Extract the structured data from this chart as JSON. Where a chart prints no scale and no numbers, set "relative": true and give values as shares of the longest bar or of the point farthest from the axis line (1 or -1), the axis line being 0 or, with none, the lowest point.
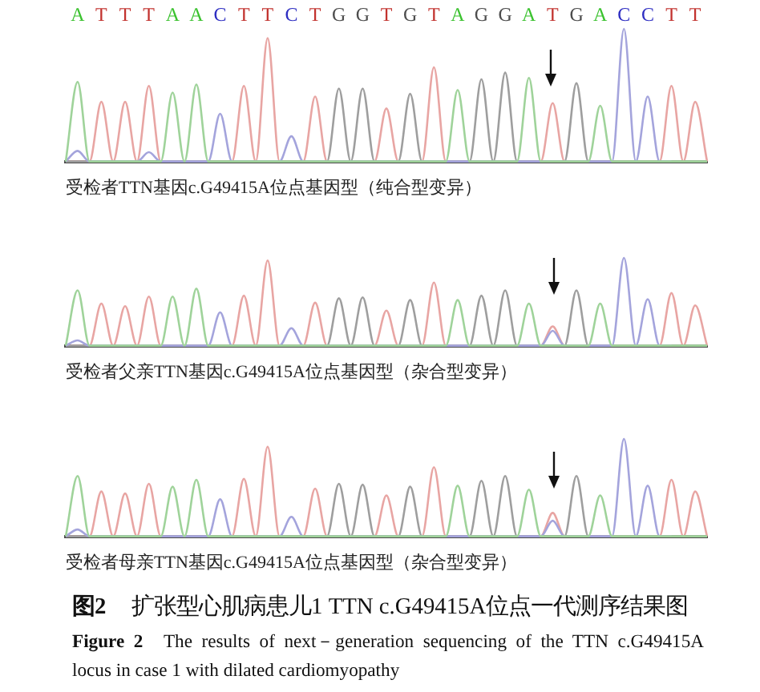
{
  "chart_data": [
    {
      "type": "line",
      "title": "受检者TTN基因c.G49415A位点基因型（纯合型变异）",
      "relative": true,
      "tick_labels": "x",
      "categories": [
        null,
        "A",
        null,
        "T",
        null,
        "T",
        null,
        "T",
        null,
        "A",
        null,
        "A",
        null,
        "C",
        null,
        "T",
        null,
        "T",
        null,
        "C",
        null,
        "T",
        null,
        "G",
        null,
        "G",
        null,
        "T",
        null,
        "G",
        null,
        "T",
        null,
        "A",
        null,
        "G",
        null,
        "G",
        null,
        "A",
        null,
        "T",
        null,
        "G",
        null,
        "A",
        null,
        "C",
        null,
        "C",
        null,
        "T",
        null,
        "T",
        null
      ],
      "series": [
        {
          "color": "#9fd39a",
          "values": [
            0,
            0.6,
            0,
            0,
            0,
            0,
            0,
            0,
            0,
            0.52,
            0,
            0.58,
            0,
            0,
            0,
            0,
            0,
            0,
            0,
            0,
            0,
            0,
            0,
            0,
            0,
            0,
            0,
            0,
            0,
            0,
            0,
            0,
            0,
            0.54,
            0,
            0,
            0,
            0,
            0,
            0.63,
            0,
            0,
            0,
            0,
            0,
            0.42,
            0,
            0,
            0,
            0,
            0,
            0,
            0,
            0,
            0
          ]
        },
        {
          "color": "#a4a4dc",
          "values": [
            0,
            0.08,
            0,
            0,
            0,
            0,
            0,
            0.07,
            0,
            0,
            0,
            0,
            0,
            0.36,
            0,
            0,
            0,
            0,
            0,
            0.19,
            0,
            0,
            0,
            0,
            0,
            0,
            0,
            0,
            0,
            0,
            0,
            0,
            0,
            0,
            0,
            0,
            0,
            0,
            0,
            0,
            0,
            0,
            0,
            0,
            0,
            0,
            0,
            1,
            0,
            0.49,
            0,
            0,
            null,
            null,
            null
          ]
        },
        {
          "color": "#9e9e9e",
          "values": [
            0,
            0,
            0,
            0,
            0,
            0,
            0,
            0,
            0,
            0,
            0,
            0,
            0,
            0,
            0,
            0,
            0,
            0,
            0,
            0,
            0,
            0,
            0,
            0.55,
            0,
            0.55,
            0,
            0,
            0,
            0.51,
            0,
            0,
            0,
            0,
            0,
            0.62,
            0,
            0.67,
            0,
            0,
            0,
            0,
            0,
            0.59,
            0,
            0,
            0,
            0,
            0,
            0,
            0,
            0,
            0,
            0,
            0
          ]
        },
        {
          "color": "#e8a5a3",
          "values": [
            0,
            0,
            0,
            0.45,
            0,
            0.45,
            0,
            0.57,
            0,
            0,
            0,
            0,
            0,
            0,
            0,
            0.57,
            0,
            0.93,
            0,
            0,
            0,
            0.49,
            0,
            0,
            0,
            0,
            0,
            0.4,
            0,
            0,
            0,
            0.71,
            0,
            0,
            0,
            0,
            0,
            0,
            0,
            0,
            0,
            0.44,
            0,
            0,
            0,
            0,
            0,
            0,
            0,
            0,
            0,
            0.57,
            0,
            0.45,
            0
          ]
        }
      ]
    },
    {
      "type": "line",
      "title": "受检者父亲TTN基因c.G49415A位点基因型（杂合型变异）",
      "relative": true,
      "categories": [
        null,
        null,
        null,
        null,
        null,
        null,
        null,
        null,
        null,
        null,
        null,
        null,
        null,
        null,
        null,
        null,
        null,
        null,
        null,
        null,
        null,
        null,
        null,
        null,
        null,
        null,
        null,
        null,
        null,
        null,
        null,
        null,
        null,
        null,
        null,
        null,
        null,
        null,
        null,
        null,
        null,
        null,
        null,
        null,
        null,
        null,
        null,
        null,
        null,
        null,
        null,
        null,
        null,
        null,
        null
      ],
      "series": [
        {
          "color": "#9fd39a",
          "values": [
            0,
            0.63,
            0,
            0,
            0,
            0,
            0,
            0,
            0,
            0.56,
            0,
            0.65,
            0,
            0,
            0,
            0,
            0,
            0,
            0,
            0,
            0,
            0,
            0,
            0,
            0,
            0,
            0,
            0,
            0,
            0,
            0,
            0,
            0,
            0.52,
            0,
            0,
            0,
            0,
            0,
            0.48,
            0,
            0,
            0,
            0,
            0,
            0.48,
            0,
            0,
            0,
            0,
            0,
            0,
            0,
            0,
            0
          ]
        },
        {
          "color": "#a4a4dc",
          "values": [
            0,
            0.06,
            0,
            0,
            0,
            0,
            0,
            0,
            0,
            0,
            0,
            0,
            0,
            0.38,
            0,
            0,
            0,
            0,
            0,
            0.2,
            0,
            0,
            0,
            0,
            0,
            0,
            0,
            0,
            0,
            0,
            0,
            0,
            0,
            0,
            0,
            0,
            0,
            0,
            0,
            0,
            0,
            0.17,
            0,
            0,
            0,
            0,
            0,
            1,
            0,
            0.53,
            0,
            0,
            null,
            null,
            null
          ]
        },
        {
          "color": "#9e9e9e",
          "values": [
            0,
            0,
            0,
            0,
            0,
            0,
            0,
            0,
            0,
            0,
            0,
            0,
            0,
            0,
            0,
            0,
            0,
            0,
            0,
            0,
            0,
            0,
            0,
            0.54,
            0,
            0.55,
            0,
            0,
            0,
            0.52,
            0,
            0,
            0,
            0,
            0,
            0.57,
            0,
            0.63,
            0,
            0,
            0,
            0,
            0,
            0.63,
            0,
            0,
            0,
            0,
            0,
            0,
            0,
            0,
            0,
            0,
            0
          ]
        },
        {
          "color": "#e8a5a3",
          "values": [
            0,
            0,
            0,
            0.48,
            0,
            0.45,
            0,
            0.56,
            0,
            0,
            0,
            0,
            0,
            0,
            0,
            0.57,
            0,
            0.97,
            0,
            0,
            0,
            0.49,
            0,
            0,
            0,
            0,
            0,
            0.4,
            0,
            0,
            0,
            0.72,
            0,
            0,
            0,
            0,
            0,
            0,
            0,
            0,
            0,
            0.22,
            0,
            0,
            0,
            0,
            0,
            0,
            0,
            0,
            0,
            0.6,
            0,
            0.46,
            0
          ]
        }
      ]
    },
    {
      "type": "line",
      "title": "受检者母亲TTN基因c.G49415A位点基因型（杂合型变异）",
      "relative": true,
      "categories": [
        null,
        null,
        null,
        null,
        null,
        null,
        null,
        null,
        null,
        null,
        null,
        null,
        null,
        null,
        null,
        null,
        null,
        null,
        null,
        null,
        null,
        null,
        null,
        null,
        null,
        null,
        null,
        null,
        null,
        null,
        null,
        null,
        null,
        null,
        null,
        null,
        null,
        null,
        null,
        null,
        null,
        null,
        null,
        null,
        null,
        null,
        null,
        null,
        null,
        null,
        null,
        null,
        null,
        null,
        null
      ],
      "series": [
        {
          "color": "#9fd39a",
          "values": [
            0,
            0.62,
            0,
            0,
            0,
            0,
            0,
            0,
            0,
            0.51,
            0,
            0.58,
            0,
            0,
            0,
            0,
            0,
            0,
            0,
            0,
            0,
            0,
            0,
            0,
            0,
            0,
            0,
            0,
            0,
            0,
            0,
            0,
            0,
            0.52,
            0,
            0,
            0,
            0,
            0,
            0.48,
            0,
            0,
            0,
            0,
            0,
            0.42,
            0,
            0,
            0,
            0,
            0,
            0,
            0,
            0,
            0
          ]
        },
        {
          "color": "#a4a4dc",
          "values": [
            0,
            0.07,
            0,
            0,
            0,
            0,
            0,
            0,
            0,
            0,
            0,
            0,
            0,
            0.38,
            0,
            0,
            0,
            0,
            0,
            0.2,
            0,
            0,
            0,
            0,
            0,
            0,
            0,
            0,
            0,
            0,
            0,
            0,
            0,
            0,
            0,
            0,
            0,
            0,
            0,
            0,
            0,
            0.16,
            0,
            0,
            0,
            0,
            0,
            1,
            0,
            0.52,
            0,
            0,
            null,
            null,
            null
          ]
        },
        {
          "color": "#9e9e9e",
          "values": [
            0,
            0,
            0,
            0,
            0,
            0,
            0,
            0,
            0,
            0,
            0,
            0,
            0,
            0,
            0,
            0,
            0,
            0,
            0,
            0,
            0,
            0,
            0,
            0.54,
            0,
            0.53,
            0,
            0,
            0,
            0.51,
            0,
            0,
            0,
            0,
            0,
            0.57,
            0,
            0.62,
            0,
            0,
            0,
            0,
            0,
            0.62,
            0,
            0,
            0,
            0,
            0,
            0,
            0,
            0,
            0,
            0,
            0
          ]
        },
        {
          "color": "#e8a5a3",
          "values": [
            0,
            0,
            0,
            0.46,
            0,
            0.44,
            0,
            0.54,
            0,
            0,
            0,
            0,
            0,
            0,
            0,
            0.59,
            0,
            0.92,
            0,
            0,
            0,
            0.49,
            0,
            0,
            0,
            0,
            0,
            0.42,
            0,
            0,
            0,
            0.71,
            0,
            0,
            0,
            0,
            0,
            0,
            0,
            0,
            0,
            0.24,
            0,
            0,
            0,
            0,
            0,
            0,
            0,
            0,
            0,
            0.58,
            0,
            0.46,
            0
          ]
        }
      ],
      "annotations": [
        "图2 扩张型心肌病患儿1 TTN c.G49415A位点一代测序结果图",
        "Figure 2 The results of next－generation sequencing of the TTN c.G49415A locus in case 1 with dilated cardiomyopathy"
      ]
    }
  ]
}
